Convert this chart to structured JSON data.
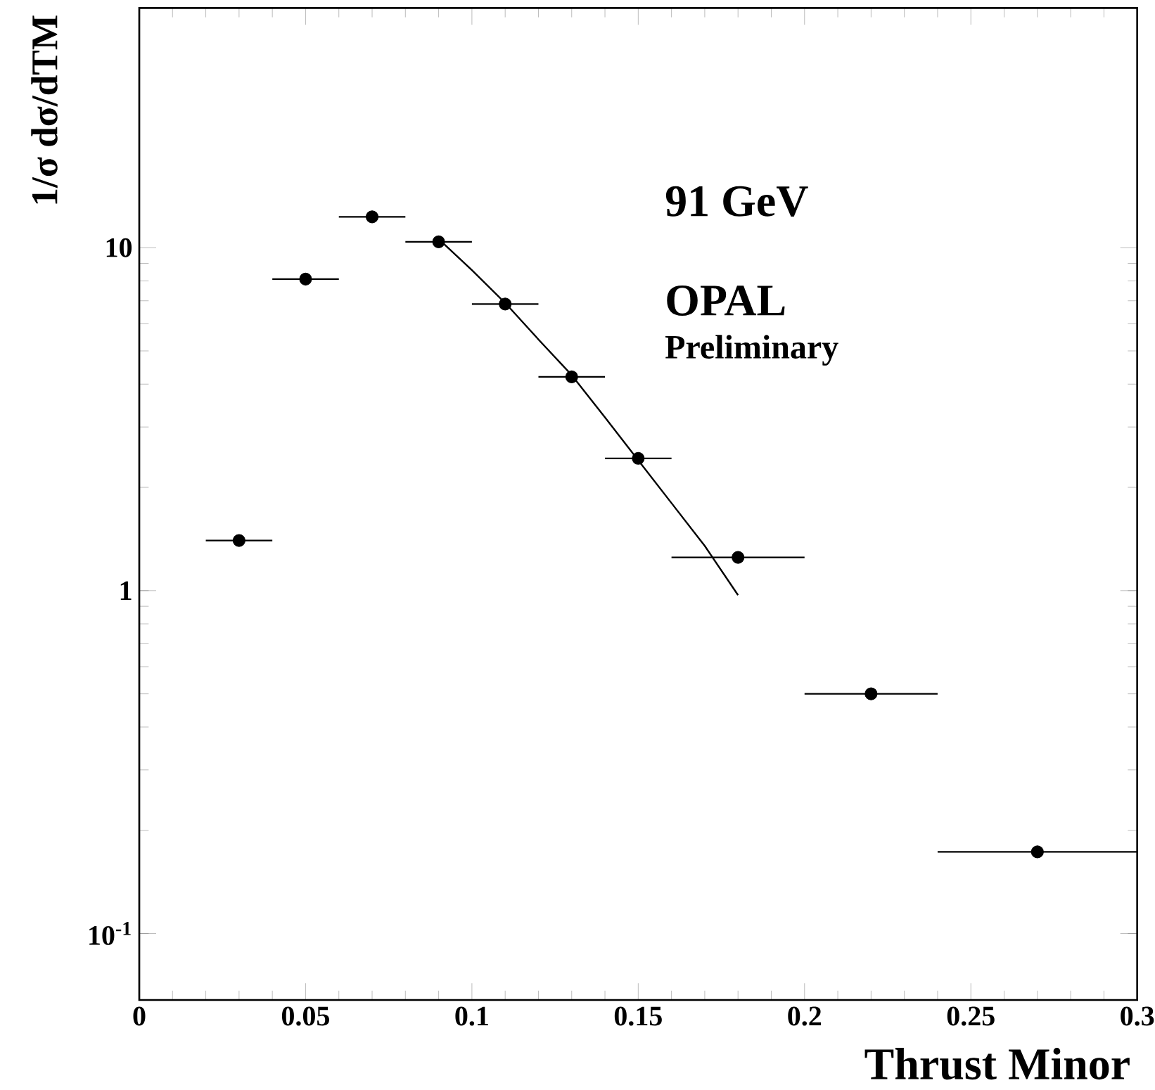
{
  "chart_data": {
    "type": "scatter",
    "xlabel": "Thrust Minor",
    "ylabel": "1/σ dσ/dTM",
    "annotations": [
      "91 GeV",
      "OPAL",
      "Preliminary"
    ],
    "log": "y",
    "xlim": [
      0,
      0.3
    ],
    "ylim": [
      0.064,
      50
    ],
    "xticks": [
      0,
      0.05,
      0.1,
      0.15,
      0.2,
      0.25,
      0.3
    ],
    "yticks": [
      {
        "value": 0.1,
        "label": "10$^{-1}$"
      },
      1,
      10
    ],
    "grid": false,
    "series": [
      {
        "color": "#000000",
        "marker": "circle",
        "x": [
          0.03,
          0.05,
          0.07,
          0.09,
          0.11,
          0.13,
          0.15,
          0.18,
          0.22,
          0.27
        ],
        "values": [
          1.4,
          8.1,
          12.3,
          10.4,
          6.85,
          4.2,
          2.43,
          1.25,
          0.5,
          0.173
        ],
        "xerrors": [
          0.01,
          0.01,
          0.01,
          0.01,
          0.01,
          0.01,
          0.01,
          0.02,
          0.02,
          0.03
        ]
      },
      {
        "type": "line",
        "color": "#000000",
        "marker": "none",
        "line_style": "solid",
        "x": [
          0.09,
          0.1,
          0.11,
          0.12,
          0.13,
          0.14,
          0.15,
          0.16,
          0.17,
          0.18
        ],
        "values": [
          10.6,
          8.6,
          6.9,
          5.4,
          4.25,
          3.2,
          2.4,
          1.8,
          1.35,
          0.97
        ]
      }
    ]
  }
}
